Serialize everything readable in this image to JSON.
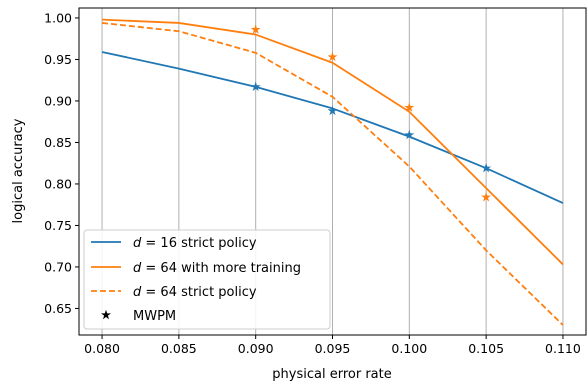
{
  "chart_data": {
    "type": "line",
    "xlabel": "physical error rate",
    "ylabel": "logical accuracy",
    "xlim": [
      0.0785,
      0.1115
    ],
    "ylim": [
      0.618,
      1.012
    ],
    "xticks": [
      0.08,
      0.085,
      0.09,
      0.095,
      0.1,
      0.105,
      0.11
    ],
    "xtick_labels": [
      "0.080",
      "0.085",
      "0.090",
      "0.095",
      "0.100",
      "0.105",
      "0.110"
    ],
    "yticks": [
      0.65,
      0.7,
      0.75,
      0.8,
      0.85,
      0.9,
      0.95,
      1.0
    ],
    "ytick_labels": [
      "0.65",
      "0.70",
      "0.75",
      "0.80",
      "0.85",
      "0.90",
      "0.95",
      "1.00"
    ],
    "grid": "vertical",
    "legend_position": "lower-left",
    "series": [
      {
        "name": "d = 16 strict policy",
        "color": "#1f77b4",
        "style": "solid",
        "x": [
          0.08,
          0.085,
          0.09,
          0.095,
          0.1,
          0.105,
          0.11
        ],
        "y": [
          0.959,
          0.939,
          0.917,
          0.891,
          0.857,
          0.819,
          0.777
        ]
      },
      {
        "name": "d = 64 with more training",
        "color": "#ff7f0e",
        "style": "solid",
        "x": [
          0.08,
          0.085,
          0.09,
          0.095,
          0.1,
          0.105,
          0.11
        ],
        "y": [
          0.998,
          0.994,
          0.98,
          0.946,
          0.887,
          0.795,
          0.703
        ]
      },
      {
        "name": "d = 64 strict policy",
        "color": "#ff7f0e",
        "style": "dashed",
        "x": [
          0.08,
          0.085,
          0.09,
          0.095,
          0.1,
          0.105,
          0.11
        ],
        "y": [
          0.994,
          0.984,
          0.958,
          0.905,
          0.821,
          0.72,
          0.63
        ]
      }
    ],
    "markers": {
      "name": "MWPM",
      "symbol": "star",
      "legend_color": "#000000",
      "groups": [
        {
          "color": "#1f77b4",
          "x": [
            0.09,
            0.095,
            0.1,
            0.105
          ],
          "y": [
            0.917,
            0.888,
            0.859,
            0.819
          ]
        },
        {
          "color": "#ff7f0e",
          "x": [
            0.09,
            0.095,
            0.1,
            0.105
          ],
          "y": [
            0.986,
            0.953,
            0.892,
            0.784
          ]
        }
      ]
    },
    "legend": [
      {
        "pre": "",
        "italic": "d",
        "post": " = 16 strict policy"
      },
      {
        "pre": "",
        "italic": "d",
        "post": " = 64 with more training"
      },
      {
        "pre": "",
        "italic": "d",
        "post": " = 64 strict policy"
      },
      {
        "pre": "MWPM",
        "italic": "",
        "post": ""
      }
    ]
  }
}
